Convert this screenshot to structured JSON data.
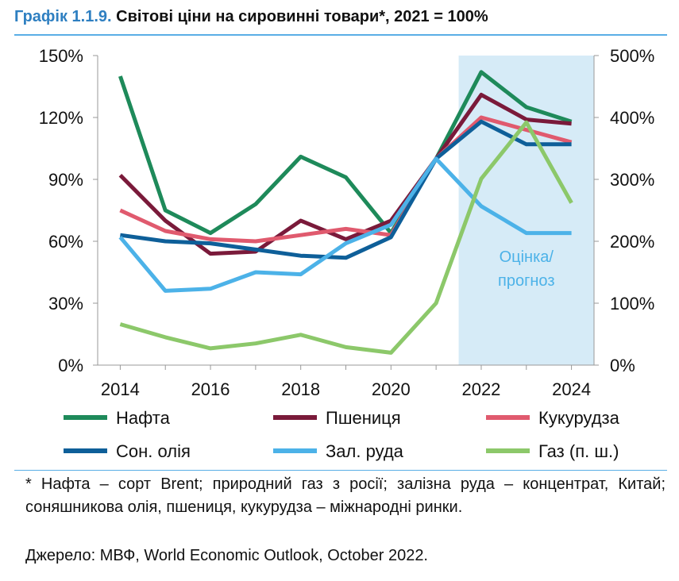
{
  "title": {
    "prefix": "Графік 1.1.9.",
    "text": "Світові ціни на сировинні товари*, 2021 = 100%"
  },
  "chart_data": {
    "type": "line",
    "x": [
      2014,
      2015,
      2016,
      2017,
      2018,
      2019,
      2020,
      2021,
      2022,
      2023,
      2024
    ],
    "xticks": [
      2014,
      2016,
      2018,
      2020,
      2022,
      2024
    ],
    "xlim": [
      2013.5,
      2024.5
    ],
    "ylim_left": [
      0,
      150
    ],
    "ylim_right": [
      0,
      500
    ],
    "yticks_left": [
      "0%",
      "30%",
      "60%",
      "90%",
      "120%",
      "150%"
    ],
    "yticks_right": [
      "0%",
      "100%",
      "200%",
      "300%",
      "400%",
      "500%"
    ],
    "grid": false,
    "shaded_region": {
      "from": 2021.5,
      "to": 2024.5,
      "label_line1": "Оцінка/",
      "label_line2": "прогноз",
      "color": "#d6ebf7"
    },
    "series": [
      {
        "name": "Нафта",
        "color": "#1e8a5a",
        "axis": "left",
        "values": [
          140,
          75,
          64,
          78,
          101,
          91,
          64,
          100,
          142,
          125,
          118
        ]
      },
      {
        "name": "Пшениця",
        "color": "#7a1a3a",
        "axis": "left",
        "values": [
          92,
          70,
          54,
          55,
          70,
          61,
          70,
          100,
          131,
          119,
          117
        ]
      },
      {
        "name": "Кукурудза",
        "color": "#e05a6e",
        "axis": "left",
        "values": [
          75,
          65,
          61,
          60,
          63,
          66,
          63,
          100,
          120,
          114,
          108
        ]
      },
      {
        "name": "Сон. олія",
        "color": "#0e5f99",
        "axis": "left",
        "values": [
          63,
          60,
          59,
          56,
          53,
          52,
          62,
          100,
          118,
          107,
          107
        ]
      },
      {
        "name": "Зал. руда",
        "color": "#4cb2e8",
        "axis": "left",
        "values": [
          62,
          36,
          37,
          45,
          44,
          59,
          68,
          100,
          77,
          64,
          64
        ]
      },
      {
        "name": "Газ (п. ш.)",
        "color": "#8cc86a",
        "axis": "right",
        "values": [
          66,
          45,
          27,
          35,
          49,
          29,
          20,
          100,
          301,
          392,
          262
        ]
      }
    ]
  },
  "footnote": "* Нафта – сорт Brent; природний газ з росії; залізна руда – концентрат, Китай; соняшникова олія, пшениця, кукурудза – міжнародні ринки.",
  "source": "Джерело: МВФ, World Economic Outlook, October 2022."
}
